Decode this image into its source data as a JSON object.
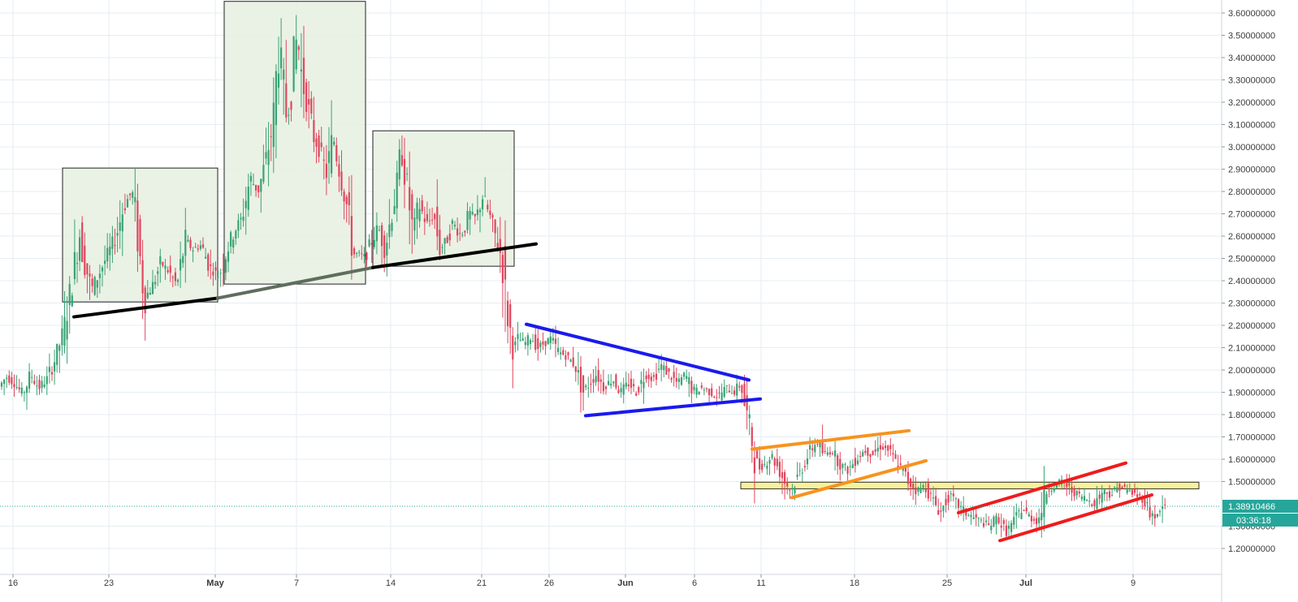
{
  "chart_data": {
    "type": "candlestick",
    "title": "",
    "xlabel": "",
    "ylabel": "",
    "ylim": [
      1.1,
      3.66
    ],
    "grid": true,
    "x_axis": {
      "ticks": [
        "16",
        "23",
        "May",
        "7",
        "14",
        "21",
        "26",
        "Jun",
        "6",
        "11",
        "18",
        "25",
        "Jul",
        "9"
      ]
    },
    "y_axis": {
      "ticks": [
        {
          "value": 3.6,
          "label": "3.60000000"
        },
        {
          "value": 3.5,
          "label": "3.50000000"
        },
        {
          "value": 3.4,
          "label": "3.40000000"
        },
        {
          "value": 3.3,
          "label": "3.30000000"
        },
        {
          "value": 3.2,
          "label": "3.20000000"
        },
        {
          "value": 3.1,
          "label": "3.10000000"
        },
        {
          "value": 3.0,
          "label": "3.00000000"
        },
        {
          "value": 2.9,
          "label": "2.90000000"
        },
        {
          "value": 2.8,
          "label": "2.80000000"
        },
        {
          "value": 2.7,
          "label": "2.70000000"
        },
        {
          "value": 2.6,
          "label": "2.60000000"
        },
        {
          "value": 2.5,
          "label": "2.50000000"
        },
        {
          "value": 2.4,
          "label": "2.40000000"
        },
        {
          "value": 2.3,
          "label": "2.30000000"
        },
        {
          "value": 2.2,
          "label": "2.20000000"
        },
        {
          "value": 2.1,
          "label": "2.10000000"
        },
        {
          "value": 2.0,
          "label": "2.00000000"
        },
        {
          "value": 1.9,
          "label": "1.90000000"
        },
        {
          "value": 1.8,
          "label": "1.80000000"
        },
        {
          "value": 1.7,
          "label": "1.70000000"
        },
        {
          "value": 1.6,
          "label": "1.60000000"
        },
        {
          "value": 1.5,
          "label": "1.50000000"
        },
        {
          "value": 1.3,
          "label": "1.30000000"
        },
        {
          "value": 1.2,
          "label": "1.20000000"
        }
      ]
    },
    "last_price": {
      "value": 1.38910466,
      "label": "1.38910466",
      "countdown": "03:36:18"
    },
    "colors": {
      "up": "#3aa374",
      "down": "#e0475e",
      "grid": "#e6edf3",
      "last_price": "#26a69a",
      "box_fill": "#e6f0e0",
      "zone_fill": "#f7f08a"
    },
    "price_path": [
      [
        0,
        1.92
      ],
      [
        10,
        1.97
      ],
      [
        20,
        1.94
      ],
      [
        30,
        1.89
      ],
      [
        40,
        1.98
      ],
      [
        50,
        1.92
      ],
      [
        60,
        1.96
      ],
      [
        70,
        2.05
      ],
      [
        80,
        2.17
      ],
      [
        90,
        2.38
      ],
      [
        100,
        2.62
      ],
      [
        105,
        2.5
      ],
      [
        115,
        2.36
      ],
      [
        125,
        2.44
      ],
      [
        135,
        2.52
      ],
      [
        145,
        2.6
      ],
      [
        155,
        2.74
      ],
      [
        165,
        2.8
      ],
      [
        172,
        2.58
      ],
      [
        180,
        2.32
      ],
      [
        190,
        2.38
      ],
      [
        200,
        2.48
      ],
      [
        210,
        2.44
      ],
      [
        220,
        2.38
      ],
      [
        230,
        2.58
      ],
      [
        240,
        2.54
      ],
      [
        250,
        2.56
      ],
      [
        260,
        2.46
      ],
      [
        272,
        2.42
      ],
      [
        280,
        2.52
      ],
      [
        290,
        2.62
      ],
      [
        300,
        2.68
      ],
      [
        310,
        2.86
      ],
      [
        320,
        2.8
      ],
      [
        330,
        2.95
      ],
      [
        338,
        3.1
      ],
      [
        345,
        3.45
      ],
      [
        350,
        3.3
      ],
      [
        356,
        3.1
      ],
      [
        362,
        3.35
      ],
      [
        368,
        3.5
      ],
      [
        374,
        3.3
      ],
      [
        380,
        3.2
      ],
      [
        388,
        3.05
      ],
      [
        396,
        2.98
      ],
      [
        404,
        2.88
      ],
      [
        412,
        3.05
      ],
      [
        420,
        2.9
      ],
      [
        430,
        2.72
      ],
      [
        437,
        2.52
      ],
      [
        445,
        2.52
      ],
      [
        452,
        2.5
      ],
      [
        460,
        2.58
      ],
      [
        468,
        2.64
      ],
      [
        476,
        2.54
      ],
      [
        484,
        2.7
      ],
      [
        490,
        2.8
      ],
      [
        496,
        2.98
      ],
      [
        504,
        2.8
      ],
      [
        510,
        2.62
      ],
      [
        518,
        2.74
      ],
      [
        528,
        2.65
      ],
      [
        536,
        2.7
      ],
      [
        544,
        2.54
      ],
      [
        552,
        2.58
      ],
      [
        560,
        2.66
      ],
      [
        570,
        2.6
      ],
      [
        580,
        2.7
      ],
      [
        588,
        2.68
      ],
      [
        596,
        2.78
      ],
      [
        604,
        2.7
      ],
      [
        612,
        2.6
      ],
      [
        620,
        2.5
      ],
      [
        624,
        2.32
      ],
      [
        628,
        2.22
      ],
      [
        634,
        2.1
      ],
      [
        640,
        2.14
      ],
      [
        648,
        2.12
      ],
      [
        656,
        2.15
      ],
      [
        664,
        2.1
      ],
      [
        672,
        2.12
      ],
      [
        680,
        2.14
      ],
      [
        690,
        2.08
      ],
      [
        700,
        2.06
      ],
      [
        710,
        2.02
      ],
      [
        720,
        1.9
      ],
      [
        728,
        1.94
      ],
      [
        736,
        1.98
      ],
      [
        746,
        1.92
      ],
      [
        756,
        1.96
      ],
      [
        766,
        1.9
      ],
      [
        776,
        1.94
      ],
      [
        786,
        1.9
      ],
      [
        796,
        1.98
      ],
      [
        806,
        1.96
      ],
      [
        816,
        2.02
      ],
      [
        826,
        1.98
      ],
      [
        836,
        1.94
      ],
      [
        846,
        1.98
      ],
      [
        856,
        1.9
      ],
      [
        866,
        1.92
      ],
      [
        876,
        1.9
      ],
      [
        886,
        1.88
      ],
      [
        896,
        1.92
      ],
      [
        906,
        1.9
      ],
      [
        914,
        1.94
      ],
      [
        920,
        1.82
      ],
      [
        926,
        1.74
      ],
      [
        930,
        1.62
      ],
      [
        936,
        1.56
      ],
      [
        944,
        1.58
      ],
      [
        952,
        1.62
      ],
      [
        960,
        1.56
      ],
      [
        968,
        1.5
      ],
      [
        976,
        1.46
      ],
      [
        984,
        1.52
      ],
      [
        992,
        1.58
      ],
      [
        1000,
        1.64
      ],
      [
        1008,
        1.68
      ],
      [
        1016,
        1.62
      ],
      [
        1026,
        1.64
      ],
      [
        1036,
        1.58
      ],
      [
        1046,
        1.55
      ],
      [
        1056,
        1.6
      ],
      [
        1066,
        1.64
      ],
      [
        1076,
        1.62
      ],
      [
        1086,
        1.66
      ],
      [
        1096,
        1.64
      ],
      [
        1106,
        1.58
      ],
      [
        1114,
        1.55
      ],
      [
        1120,
        1.5
      ],
      [
        1130,
        1.46
      ],
      [
        1140,
        1.48
      ],
      [
        1150,
        1.42
      ],
      [
        1160,
        1.36
      ],
      [
        1170,
        1.44
      ],
      [
        1180,
        1.4
      ],
      [
        1190,
        1.36
      ],
      [
        1200,
        1.34
      ],
      [
        1210,
        1.32
      ],
      [
        1220,
        1.3
      ],
      [
        1230,
        1.34
      ],
      [
        1240,
        1.27
      ],
      [
        1250,
        1.32
      ],
      [
        1260,
        1.38
      ],
      [
        1270,
        1.34
      ],
      [
        1280,
        1.32
      ],
      [
        1290,
        1.46
      ],
      [
        1300,
        1.48
      ],
      [
        1310,
        1.5
      ],
      [
        1320,
        1.46
      ],
      [
        1330,
        1.44
      ],
      [
        1340,
        1.42
      ],
      [
        1350,
        1.4
      ],
      [
        1360,
        1.46
      ],
      [
        1370,
        1.44
      ],
      [
        1380,
        1.48
      ],
      [
        1390,
        1.46
      ],
      [
        1400,
        1.44
      ],
      [
        1410,
        1.42
      ],
      [
        1418,
        1.36
      ],
      [
        1426,
        1.34
      ],
      [
        1434,
        1.39
      ]
    ],
    "boxes": [
      {
        "x0": 77,
        "x1": 268,
        "y_top": 2.905,
        "y_bot": 2.305
      },
      {
        "x0": 276,
        "x1": 450,
        "y_top": 3.652,
        "y_bot": 2.385
      },
      {
        "x0": 459,
        "x1": 633,
        "y_top": 3.072,
        "y_bot": 2.465
      }
    ],
    "zone": {
      "x0": 912,
      "x1": 1476,
      "y_top": 1.497,
      "y_bot": 1.467
    },
    "trendlines": [
      {
        "x0": 91,
        "y0": 2.238,
        "x1": 268,
        "y1": 2.322,
        "color": "#000000",
        "width": 4
      },
      {
        "x0": 268,
        "y0": 2.322,
        "x1": 459,
        "y1": 2.459,
        "color": "#5e6e5e",
        "width": 4
      },
      {
        "x0": 459,
        "y0": 2.459,
        "x1": 660,
        "y1": 2.565,
        "color": "#000000",
        "width": 4
      },
      {
        "x0": 648,
        "y0": 2.205,
        "x1": 922,
        "y1": 1.955,
        "color": "#1a1aee",
        "width": 4
      },
      {
        "x0": 721,
        "y0": 1.795,
        "x1": 936,
        "y1": 1.87,
        "color": "#1a1aee",
        "width": 4
      },
      {
        "x0": 926,
        "y0": 1.645,
        "x1": 1119,
        "y1": 1.728,
        "color": "#f7931e",
        "width": 4
      },
      {
        "x0": 975,
        "y0": 1.428,
        "x1": 1140,
        "y1": 1.593,
        "color": "#f7931e",
        "width": 4
      },
      {
        "x0": 1180,
        "y0": 1.36,
        "x1": 1386,
        "y1": 1.583,
        "color": "#ee1c1c",
        "width": 4
      },
      {
        "x0": 1231,
        "y0": 1.235,
        "x1": 1418,
        "y1": 1.44,
        "color": "#ee1c1c",
        "width": 4
      }
    ]
  }
}
